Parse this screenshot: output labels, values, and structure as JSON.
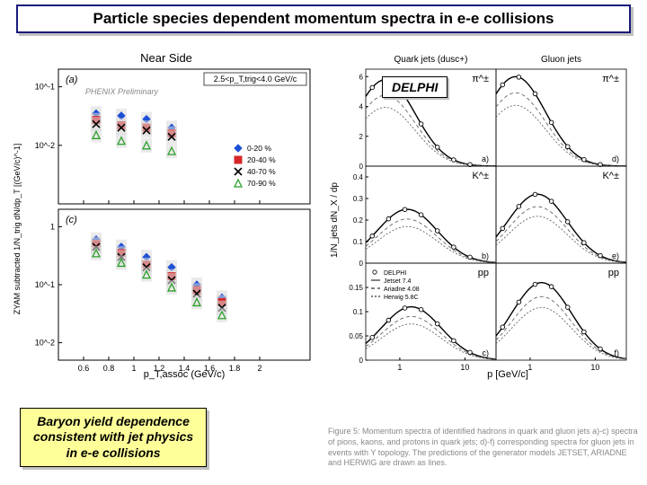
{
  "title": "Particle species dependent momentum spectra in e-e collisions",
  "delphi_label": "DELPHI",
  "bottom_caption_line1": "Baryon yield dependence",
  "bottom_caption_line2": "consistent with jet physics",
  "bottom_caption_line3": "in e-e collisions",
  "fig_caption": "Figure 5: Momentum spectra of identified hadrons in quark and gluon jets a)-c) spectra of pions, kaons, and protons in quark jets; d)-f) corresponding spectra for gluon jets in events with Y topology. The predictions of the generator models JETSET, ARIADNE and HERWIG are drawn as lines.",
  "left": {
    "title": "Near Side",
    "ylabel": "ZYAM subtracted 1/N_trig dN/dp_T  [(GeV/c)^-1]",
    "xlabel": "p_T,assoc (GeV/c)",
    "prelim": "PHENIX Preliminary",
    "cut_label": "2.5<p_T,trig<4.0 GeV/c",
    "panel_a": "(a)",
    "panel_c": "(c)",
    "xlim": [
      0.4,
      2.4
    ],
    "xticks": [
      0.6,
      0.8,
      1,
      1.2,
      1.4,
      1.6,
      1.8,
      2
    ],
    "panel_a_ylim": [
      0.001,
      0.2
    ],
    "panel_a_yticks": [
      0.001,
      0.01,
      0.1
    ],
    "panel_a_yticklabels": [
      "",
      "10^-2",
      "10^-1"
    ],
    "panel_c_ylim": [
      0.005,
      2
    ],
    "panel_c_yticks": [
      0.01,
      0.1,
      1
    ],
    "panel_c_yticklabels": [
      "10^-2",
      "10^-1",
      "1"
    ],
    "legend": [
      {
        "label": "0-20 %",
        "marker": "diamond",
        "color": "#1e50d6"
      },
      {
        "label": "20-40 %",
        "marker": "square",
        "color": "#d62728"
      },
      {
        "label": "40-70 %",
        "marker": "cross",
        "color": "#000000"
      },
      {
        "label": "70-90 %",
        "marker": "triangle",
        "color": "#2ca02c"
      }
    ],
    "panel_a_data": {
      "x": [
        0.7,
        0.9,
        1.1,
        1.3
      ],
      "series": [
        {
          "marker": "diamond",
          "color": "#1e50d6",
          "y": [
            0.035,
            0.032,
            0.028,
            0.02
          ]
        },
        {
          "marker": "square",
          "color": "#d62728",
          "y": [
            0.027,
            0.022,
            0.02,
            0.016
          ]
        },
        {
          "marker": "cross",
          "color": "#000000",
          "y": [
            0.023,
            0.02,
            0.018,
            0.014
          ]
        },
        {
          "marker": "triangle",
          "color": "#2ca02c",
          "y": [
            0.015,
            0.012,
            0.01,
            0.008
          ]
        }
      ]
    },
    "panel_c_data": {
      "x": [
        0.7,
        0.9,
        1.1,
        1.3,
        1.5,
        1.7
      ],
      "series": [
        {
          "marker": "diamond",
          "color": "#1e50d6",
          "y": [
            0.6,
            0.45,
            0.3,
            0.2,
            0.1,
            0.06
          ]
        },
        {
          "marker": "square",
          "color": "#d62728",
          "y": [
            0.5,
            0.35,
            0.22,
            0.14,
            0.08,
            0.05
          ]
        },
        {
          "marker": "cross",
          "color": "#000000",
          "y": [
            0.45,
            0.3,
            0.2,
            0.12,
            0.07,
            0.04
          ]
        },
        {
          "marker": "triangle",
          "color": "#2ca02c",
          "y": [
            0.35,
            0.24,
            0.15,
            0.09,
            0.05,
            0.03
          ]
        }
      ]
    },
    "grid_color": "#000000",
    "background_color": "#ffffff"
  },
  "right": {
    "col_titles": [
      "Quark jets (dusc+)",
      "Gluon jets"
    ],
    "row_labels": [
      "π^±",
      "K^±",
      "pp"
    ],
    "ylabel": "1/N_jets dN_X / dp",
    "xlabel": "p [GeV/c]",
    "xlim": [
      0.3,
      30
    ],
    "xticks": [
      1,
      10
    ],
    "legend": [
      {
        "label": "DELPHI",
        "marker": "circle"
      },
      {
        "label": "Jetset 7.4"
      },
      {
        "label": "Ariadne 4.08"
      },
      {
        "label": "Herwig 5.8C"
      }
    ],
    "panels": [
      {
        "id": "a",
        "ylim": [
          0,
          6.5
        ],
        "yticks": [
          0,
          2,
          4,
          6
        ],
        "curve_peak": 5.8,
        "curve_peak_x": 0.6
      },
      {
        "id": "d",
        "ylim": [
          0,
          6.5
        ],
        "yticks": [
          0,
          2,
          4,
          6
        ],
        "curve_peak": 6.0,
        "curve_peak_x": 0.6
      },
      {
        "id": "b",
        "ylim": [
          0,
          0.45
        ],
        "yticks": [
          0,
          0.1,
          0.2,
          0.3,
          0.4
        ],
        "curve_peak": 0.25,
        "curve_peak_x": 1.3
      },
      {
        "id": "e",
        "ylim": [
          0,
          0.45
        ],
        "yticks": [
          0,
          0.1,
          0.2,
          0.3,
          0.4
        ],
        "curve_peak": 0.32,
        "curve_peak_x": 1.3
      },
      {
        "id": "c",
        "ylim": [
          0,
          0.2
        ],
        "yticks": [
          0,
          0.05,
          0.1,
          0.15
        ],
        "curve_peak": 0.11,
        "curve_peak_x": 1.5
      },
      {
        "id": "f",
        "ylim": [
          0,
          0.2
        ],
        "yticks": [
          0,
          0.05,
          0.1,
          0.15
        ],
        "curve_peak": 0.16,
        "curve_peak_x": 1.5
      }
    ],
    "curve_color": "#000000",
    "dash_color": "#666666"
  }
}
